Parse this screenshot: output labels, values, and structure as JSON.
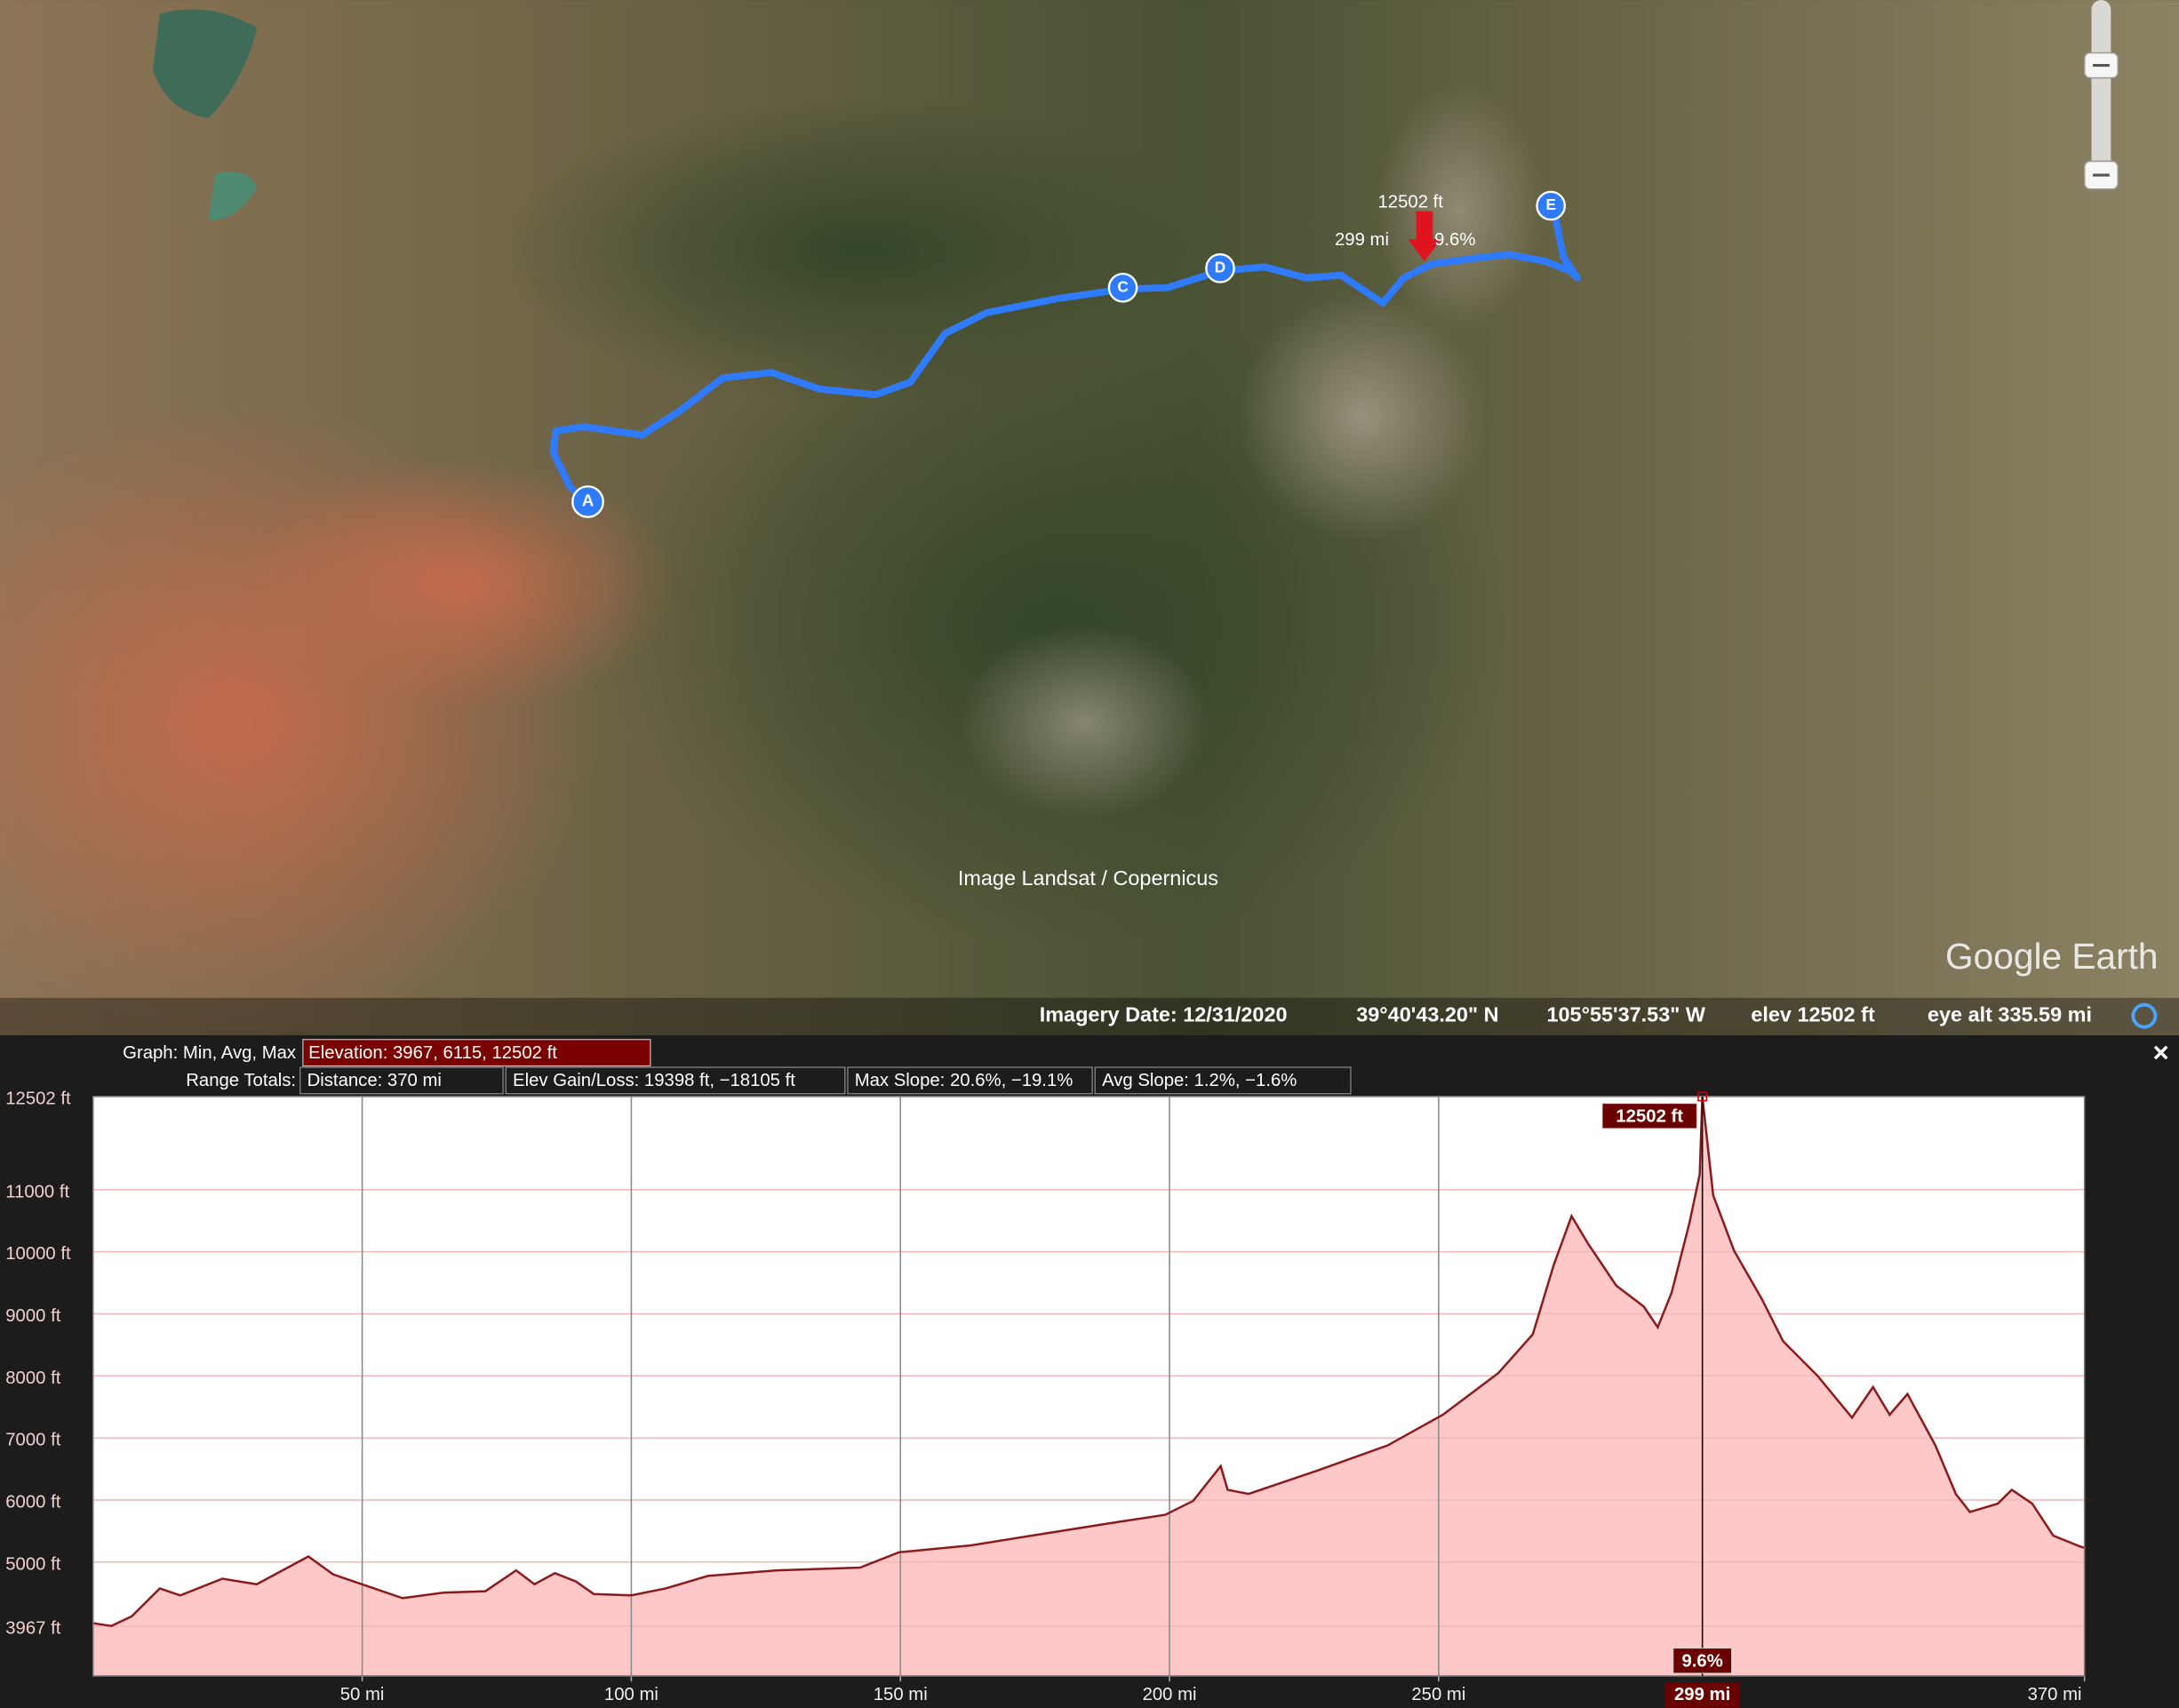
{
  "map": {
    "markers": [
      "A",
      "C",
      "D",
      "E"
    ],
    "cursor_labels": {
      "elevation": "12502 ft",
      "distance": "299 mi",
      "slope": "9.6%"
    },
    "attribution": "Image Landsat / Copernicus",
    "logo": "Google Earth"
  },
  "status_bar": {
    "imagery_date": "Imagery Date: 12/31/2020",
    "latitude": "39°40'43.20\" N",
    "longitude": "105°55'37.53\" W",
    "elevation": "elev 12502 ft",
    "eye_altitude": "eye alt 335.59 mi"
  },
  "profile_panel": {
    "graph_label": "Graph: Min, Avg, Max",
    "elevation_summary": "Elevation: 3967, 6115, 12502 ft",
    "range_label": "Range Totals:",
    "distance": "Distance: 370 mi",
    "elev_gain_loss": "Elev Gain/Loss: 19398 ft, −18105 ft",
    "max_slope": "Max Slope: 20.6%, −19.1%",
    "avg_slope": "Avg Slope: 1.2%, −1.6%",
    "close": "×"
  },
  "chart_data": {
    "type": "area",
    "x": [
      0,
      3.4,
      7.2,
      12.4,
      16.2,
      24,
      30.4,
      40,
      44.6,
      57.5,
      65.2,
      72.9,
      78.6,
      82,
      85.8,
      89.7,
      93,
      100,
      106.4,
      114.2,
      127,
      142.5,
      149.7,
      163.1,
      176,
      189,
      199.2,
      204.4,
      209.5,
      210.8,
      214.7,
      227.6,
      240.5,
      250.8,
      261.1,
      267.5,
      271.4,
      274.7,
      277.8,
      283,
      288.1,
      290.7,
      293.3,
      296.6,
      298.5,
      299,
      301,
      304.9,
      310.1,
      314,
      320.4,
      326.8,
      330.7,
      333.8,
      337.1,
      342.3,
      346.1,
      348.7,
      353.9,
      356.5,
      360.3,
      364.2,
      369.3,
      370
    ],
    "values": [
      4015,
      3970,
      4127,
      4575,
      4463,
      4731,
      4642,
      5090,
      4800,
      4418,
      4508,
      4530,
      4866,
      4642,
      4821,
      4687,
      4485,
      4463,
      4575,
      4776,
      4866,
      4910,
      5157,
      5269,
      5448,
      5627,
      5761,
      5985,
      6545,
      6164,
      6097,
      6478,
      6880,
      7373,
      8045,
      8671,
      9791,
      10574,
      10126,
      9455,
      9119,
      8783,
      9343,
      10462,
      11246,
      12502,
      10910,
      10014,
      9231,
      8559,
      8000,
      7328,
      7820,
      7373,
      7708,
      6880,
      6097,
      5806,
      5940,
      6164,
      5940,
      5425,
      5246,
      5230
    ],
    "color": "#8b1a1a",
    "fill": "#ffc8c8",
    "xlim": [
      0,
      370
    ],
    "ylim": [
      3164,
      12502
    ],
    "xticks": [
      {
        "value": 50,
        "label": "50 mi"
      },
      {
        "value": 100,
        "label": "100 mi"
      },
      {
        "value": 150,
        "label": "150 mi"
      },
      {
        "value": 200,
        "label": "200 mi"
      },
      {
        "value": 250,
        "label": "250 mi"
      },
      {
        "value": 370,
        "label": "370 mi"
      }
    ],
    "yticks": [
      {
        "value": 3967,
        "label": "3967 ft"
      },
      {
        "value": 5000,
        "label": "5000 ft"
      },
      {
        "value": 6000,
        "label": "6000 ft"
      },
      {
        "value": 7000,
        "label": "7000 ft"
      },
      {
        "value": 8000,
        "label": "8000 ft"
      },
      {
        "value": 9000,
        "label": "9000 ft"
      },
      {
        "value": 10000,
        "label": "10000 ft"
      },
      {
        "value": 11000,
        "label": "11000 ft"
      },
      {
        "value": 12502,
        "label": "12502 ft"
      }
    ],
    "cursor": {
      "x": {
        "value": 299,
        "label": "299 mi"
      },
      "y": {
        "value": 12502,
        "label": "12502 ft"
      },
      "slope": "9.6%"
    },
    "grid": true
  }
}
